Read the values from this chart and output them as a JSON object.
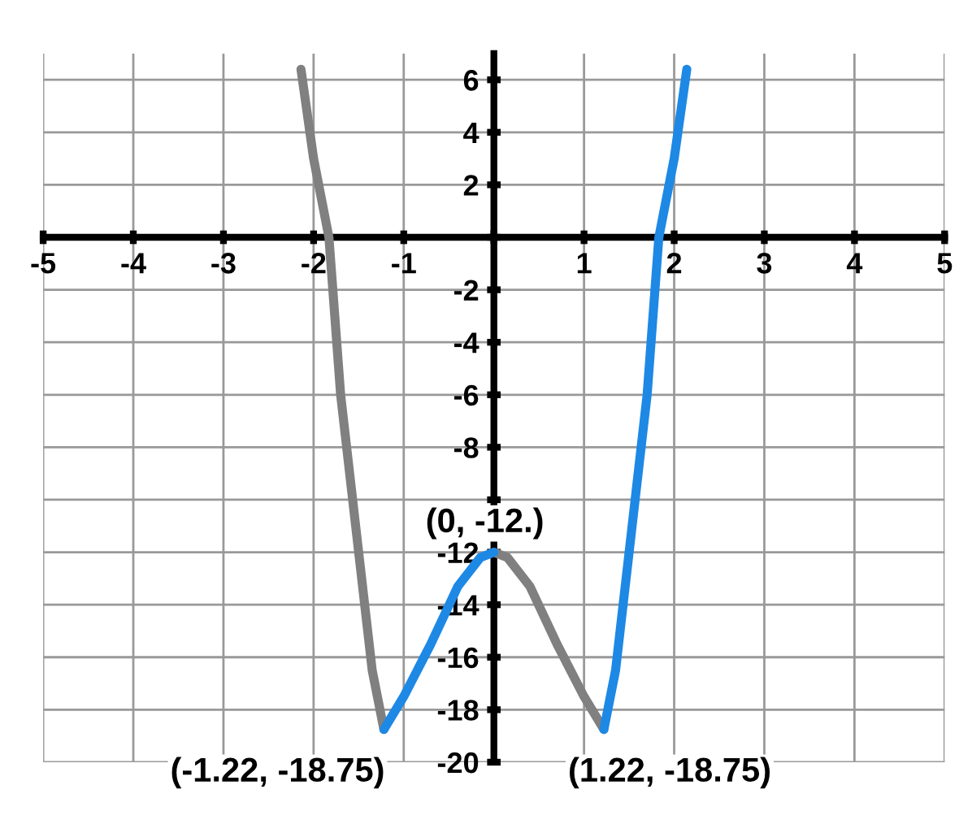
{
  "chart_data": {
    "type": "line",
    "xlim": [
      -5,
      5
    ],
    "ylim": [
      -20,
      7
    ],
    "xticks": [
      -5,
      -4,
      -3,
      -2,
      -1,
      {
        "value": 0,
        "label": null
      },
      1,
      2,
      3,
      4,
      5
    ],
    "yticks": [
      -20,
      -18,
      -16,
      -14,
      -12,
      {
        "value": -10,
        "label": null
      },
      -8,
      -6,
      -4,
      -2,
      {
        "value": 0,
        "label": null
      },
      2,
      4,
      6
    ],
    "grid": true,
    "marker": "none",
    "line_style": "solid",
    "series": [
      {
        "color": "#808080",
        "x": [
          -2.14,
          -2.0,
          -1.83,
          -1.7,
          -1.5,
          -1.35,
          -1.22,
          null,
          0,
          0.15,
          0.4,
          0.7,
          1.0,
          1.22
        ],
        "values": [
          6.4,
          3,
          0,
          -6,
          -12,
          -16.5,
          -18.75,
          null,
          -12,
          -12.2,
          -13.3,
          -15.5,
          -17.5,
          -18.75
        ]
      },
      {
        "color": "#1e88e5",
        "x": [
          -1.22,
          -1.0,
          -0.7,
          -0.4,
          -0.15,
          0,
          null,
          1.22,
          1.35,
          1.5,
          1.7,
          1.83,
          2.0,
          2.14
        ],
        "values": [
          -18.75,
          -17.5,
          -15.5,
          -13.3,
          -12.2,
          -12,
          null,
          -18.75,
          -16.5,
          -12,
          -6,
          0,
          3,
          6.4
        ]
      }
    ],
    "annotations": [
      {
        "text": "(0, -12.)",
        "x": 0,
        "y": -12
      },
      {
        "text": "(-1.22, -18.75)",
        "x": -1.22,
        "y": -18.75
      },
      {
        "text": "(1.22, -18.75)",
        "x": 1.22,
        "y": -18.75
      }
    ]
  }
}
